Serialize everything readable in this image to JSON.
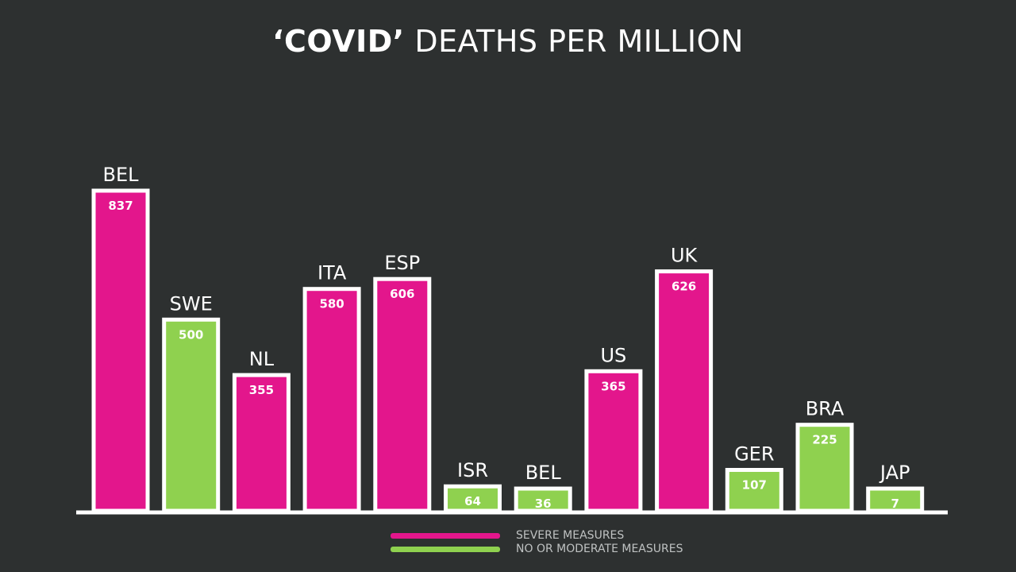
{
  "title_bold": "‘COVID’",
  "title_rest": "DEATHS PER MILLION",
  "colors": {
    "background": "#2d3030",
    "severe": "#e3168c",
    "moderate": "#8fd14f",
    "outline": "#ffffff"
  },
  "legend": [
    {
      "label": "SEVERE MEASURES",
      "color": "#e3168c"
    },
    {
      "label": "NO OR MODERATE MEASURES",
      "color": "#8fd14f"
    }
  ],
  "chart_data": {
    "type": "bar",
    "title": "‘COVID’ DEATHS PER MILLION",
    "categories": [
      "BEL",
      "SWE",
      "NL",
      "ITA",
      "ESP",
      "ISR",
      "BEL",
      "US",
      "UK",
      "GER",
      "BRA",
      "JAP"
    ],
    "values": [
      837,
      500,
      355,
      580,
      606,
      64,
      36,
      365,
      626,
      107,
      225,
      7
    ],
    "groups": [
      "severe",
      "moderate",
      "severe",
      "severe",
      "severe",
      "moderate",
      "moderate",
      "severe",
      "severe",
      "moderate",
      "moderate",
      "moderate"
    ],
    "series": [
      {
        "name": "SEVERE MEASURES",
        "color": "#e3168c"
      },
      {
        "name": "NO OR MODERATE MEASURES",
        "color": "#8fd14f"
      }
    ],
    "ylim": [
      0,
      837
    ],
    "grid": false,
    "legend_position": "bottom-center"
  }
}
